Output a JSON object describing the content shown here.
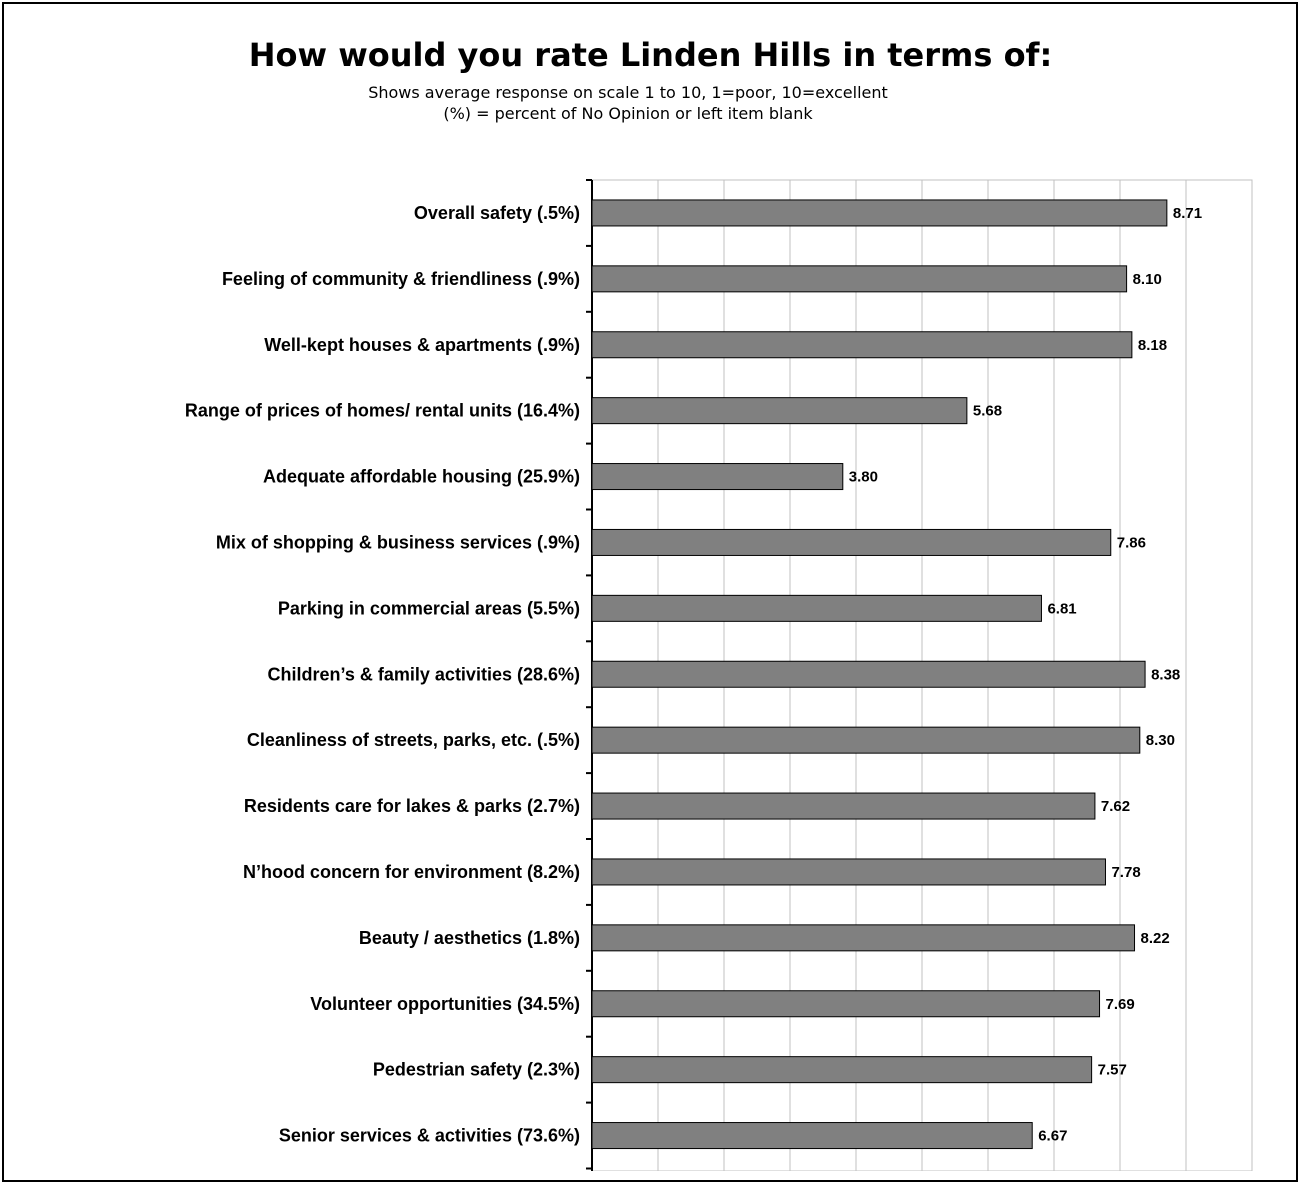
{
  "chart_data": {
    "type": "bar",
    "orientation": "horizontal",
    "title": "How would you rate Linden Hills in terms of:",
    "subtitle_lines": [
      "Shows average response on scale 1 to 10, 1=poor, 10=excellent",
      "(%) = percent of No Opinion or left item blank"
    ],
    "categories": [
      "Overall safety (.5%)",
      "Feeling of community & friendliness (.9%)",
      "Well-kept houses & apartments (.9%)",
      "Range of prices of homes/ rental units (16.4%)",
      "Adequate affordable housing (25.9%)",
      "Mix of shopping & business services (.9%)",
      "Parking in commercial areas (5.5%)",
      "Children’s & family activities (28.6%)",
      "Cleanliness of streets, parks, etc. (.5%)",
      "Residents care for lakes & parks (2.7%)",
      "N’hood concern for environment (8.2%)",
      "Beauty / aesthetics (1.8%)",
      "Volunteer opportunities (34.5%)",
      "Pedestrian safety (2.3%)",
      "Senior services & activities (73.6%)"
    ],
    "values": [
      8.71,
      8.1,
      8.18,
      5.68,
      3.8,
      7.86,
      6.81,
      8.38,
      8.3,
      7.62,
      7.78,
      8.22,
      7.69,
      7.57,
      6.67
    ],
    "value_labels": [
      "8.71",
      "8.10",
      "8.18",
      "5.68",
      "3.80",
      "7.86",
      "6.81",
      "8.38",
      "8.30",
      "7.62",
      "7.78",
      "8.22",
      "7.69",
      "7.57",
      "6.67"
    ],
    "xlim": [
      0,
      10
    ],
    "grid": true,
    "bar_color": "#808080",
    "grid_color": "#c0c0c0"
  }
}
